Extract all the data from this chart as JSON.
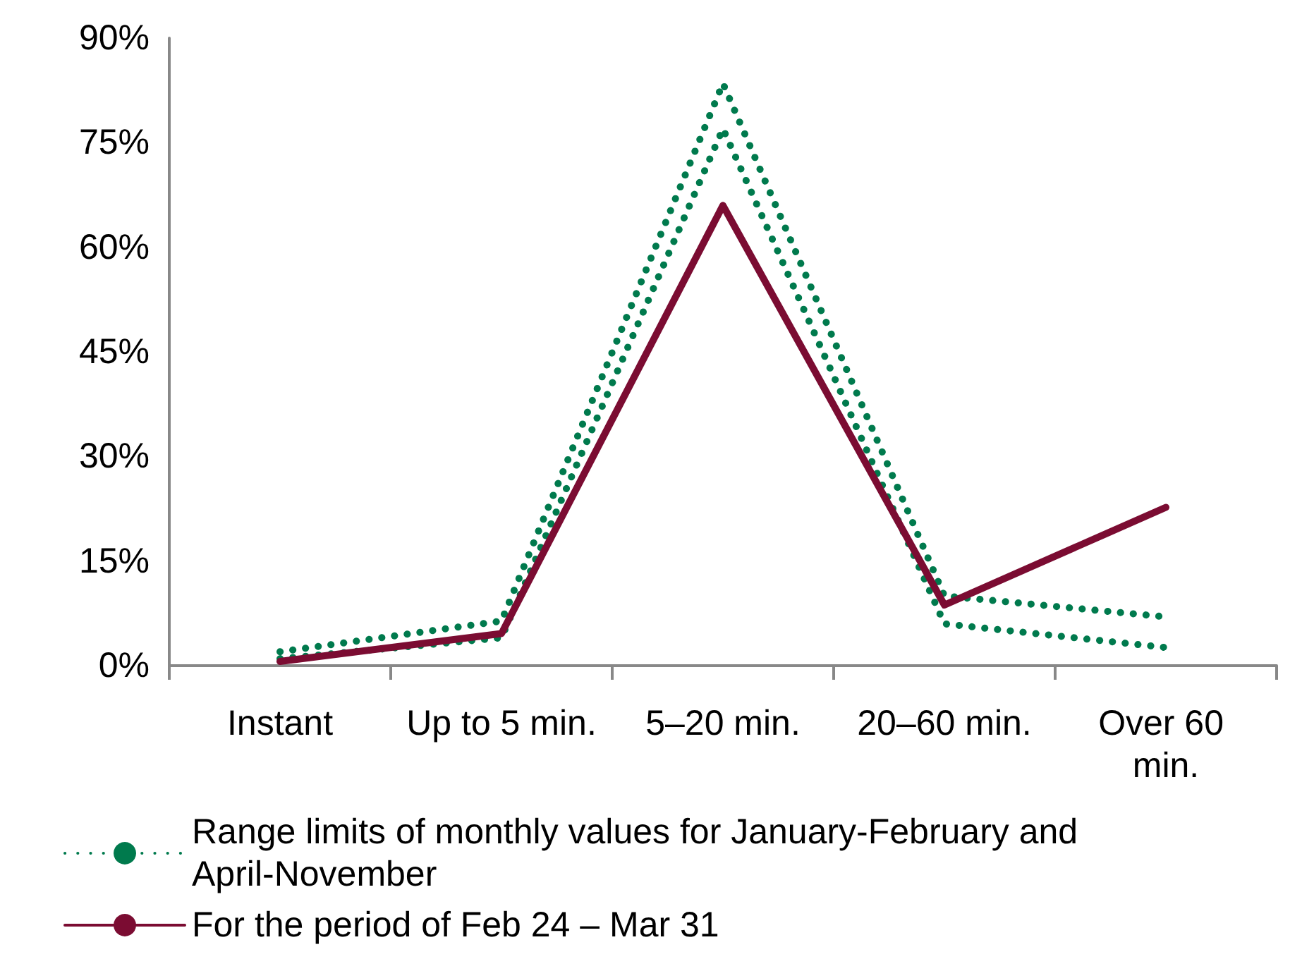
{
  "chart_data": {
    "type": "line",
    "categories": [
      "Instant",
      "Up to 5 min.",
      "5–20 min.",
      "20–60 min.",
      "Over 60 min."
    ],
    "series": [
      {
        "name": "Range limits of monthly values for January-February and April-November",
        "color": "#007a4d",
        "line_style": "dotted",
        "values": [
          2,
          6.4,
          83.5,
          10,
          7
        ]
      },
      {
        "color": "#007a4d",
        "line_style": "dotted",
        "values": [
          1,
          4,
          77,
          6,
          2.6
        ]
      },
      {
        "name": "For the period of Feb 24 – Mar 31",
        "color": "#7b0c32",
        "line_style": "solid",
        "values": [
          0.6,
          4.6,
          66,
          8.7,
          22.7
        ]
      }
    ],
    "ylim": [
      0,
      90
    ],
    "yticks": [
      {
        "value": 0,
        "label": "0%"
      },
      {
        "value": 15,
        "label": "15%"
      },
      {
        "value": 30,
        "label": "30%"
      },
      {
        "value": 45,
        "label": "45%"
      },
      {
        "value": 60,
        "label": "60%"
      },
      {
        "value": 75,
        "label": "75%"
      },
      {
        "value": 90,
        "label": "90%"
      }
    ],
    "grid": false,
    "legend": "bottom left",
    "marker": "none"
  }
}
